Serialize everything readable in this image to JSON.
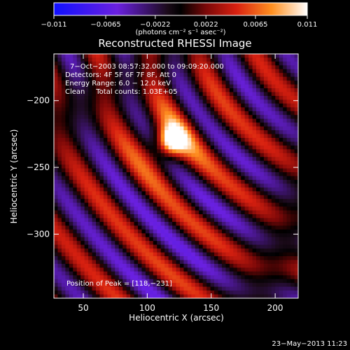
{
  "chart_data": {
    "type": "heatmap",
    "title": "Reconstructed RHESSI Image",
    "xlabel": "Heliocentric X (arcsec)",
    "ylabel": "Heliocentric Y (arcsec)",
    "xlim": [
      27,
      218
    ],
    "ylim": [
      -348,
      -165
    ],
    "xticks": [
      50,
      100,
      150,
      200
    ],
    "yticks": [
      -200,
      -250,
      -300
    ],
    "colorbar": {
      "ticks": [
        -0.011,
        -0.0065,
        -0.0022,
        0.0022,
        0.0065,
        0.011
      ],
      "tick_labels": [
        "−0.011",
        "−0.0065",
        "−0.0022",
        "0.0022",
        "0.0065",
        "0.011"
      ],
      "range": [
        -0.011,
        0.011
      ],
      "unit_label": "(photons cm⁻² s⁻¹ asec⁻²)"
    },
    "colors": {
      "negative": "#2a00ff",
      "zero": "#000000",
      "mid": "#d02010",
      "high": "#ff9020",
      "max": "#ffffff"
    },
    "annotations": [
      "7−Oct−2003 08:57:32.000 to 09:09:20.000",
      "Detectors: 4F 5F 6F 7F 8F, Att 0",
      "Energy Range: 6.0 − 12.0 keV",
      "Clean     Total counts: 1.03E+05"
    ],
    "peak": {
      "x": 118,
      "y": -231,
      "label": "Position of Peak = [118,−231]"
    }
  },
  "timestamp": "23−May−2013 11:23"
}
